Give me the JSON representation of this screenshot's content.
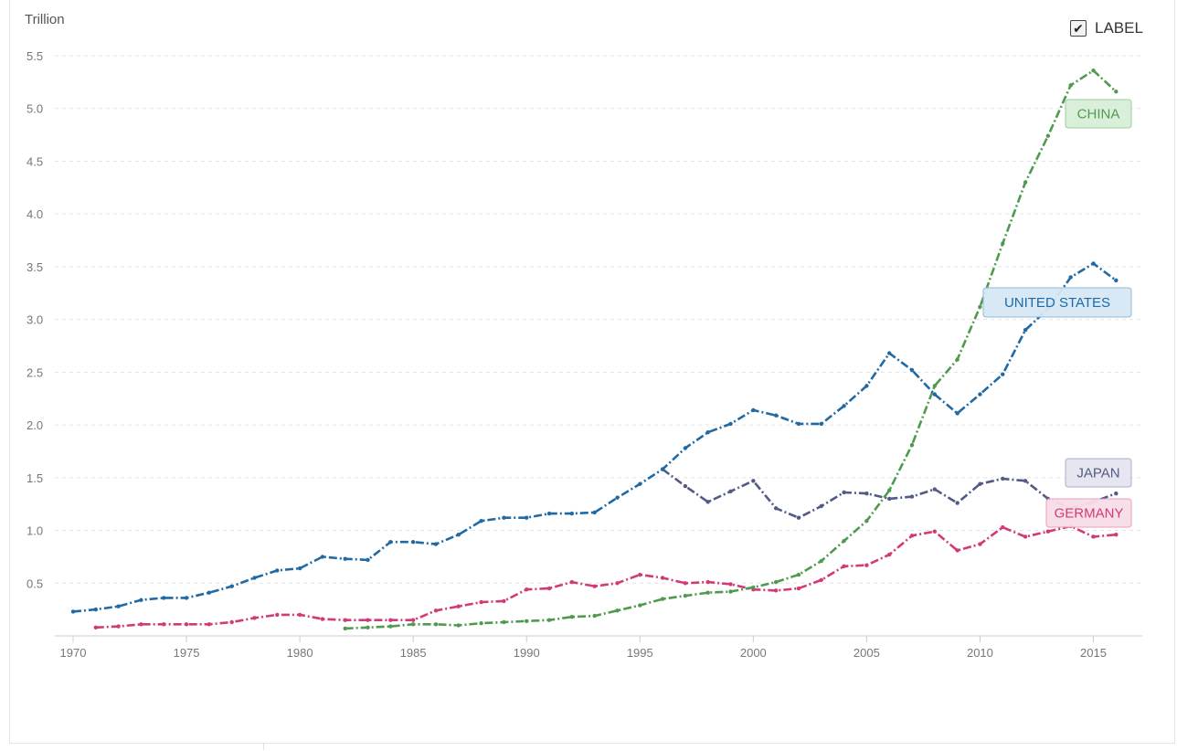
{
  "unit_label": "Trillion",
  "label_toggle": {
    "text": "LABEL",
    "checked": true,
    "check_glyph": "✔"
  },
  "chart_data": {
    "type": "line",
    "ylabel": "Trillion",
    "xlim": [
      1970,
      2017
    ],
    "ylim": [
      0,
      5.5
    ],
    "y_ticks": [
      0.5,
      1.0,
      1.5,
      2.0,
      2.5,
      3.0,
      3.5,
      4.0,
      4.5,
      5.0,
      5.5
    ],
    "y_tick_labels": [
      "0.5",
      "1.0",
      "1.5",
      "2.0",
      "2.5",
      "3.0",
      "3.5",
      "4.0",
      "4.5",
      "5.0",
      "5.5"
    ],
    "x_ticks": [
      1970,
      1975,
      1980,
      1985,
      1990,
      1995,
      2000,
      2005,
      2010,
      2015
    ],
    "x_tick_labels": [
      "1970",
      "1975",
      "1980",
      "1985",
      "1990",
      "1995",
      "2000",
      "2005",
      "2010",
      "2015"
    ],
    "grid": "horizontal dashed",
    "series": [
      {
        "name": "UNITED STATES",
        "color": "#2169a3",
        "label_bg": "#d6e8f5",
        "label_border": "#8ab8da",
        "x": [
          1970,
          1971,
          1972,
          1973,
          1974,
          1975,
          1976,
          1977,
          1978,
          1979,
          1980,
          1981,
          1982,
          1983,
          1984,
          1985,
          1986,
          1987,
          1988,
          1989,
          1990,
          1991,
          1992,
          1993,
          1994,
          1995,
          1996,
          1997,
          1998,
          1999,
          2000,
          2001,
          2002,
          2003,
          2004,
          2005,
          2006,
          2007,
          2008,
          2009,
          2010,
          2011,
          2012,
          2013,
          2014,
          2015,
          2016
        ],
        "y": [
          0.23,
          0.25,
          0.28,
          0.34,
          0.36,
          0.36,
          0.41,
          0.47,
          0.55,
          0.62,
          0.64,
          0.75,
          0.73,
          0.72,
          0.89,
          0.89,
          0.87,
          0.96,
          1.09,
          1.12,
          1.12,
          1.16,
          1.16,
          1.17,
          1.31,
          1.44,
          1.58,
          1.78,
          1.93,
          2.01,
          2.14,
          2.09,
          2.01,
          2.01,
          2.18,
          2.37,
          2.68,
          2.52,
          2.29,
          2.11,
          2.29,
          2.48,
          2.9,
          3.1,
          3.4,
          3.53,
          3.37
        ]
      },
      {
        "name": "CHINA",
        "color": "#4f9a4f",
        "label_bg": "#d9efd9",
        "label_border": "#98cc98",
        "x": [
          1982,
          1983,
          1984,
          1985,
          1986,
          1987,
          1988,
          1989,
          1990,
          1991,
          1992,
          1993,
          1994,
          1995,
          1996,
          1997,
          1998,
          1999,
          2000,
          2001,
          2002,
          2003,
          2004,
          2005,
          2006,
          2007,
          2008,
          2009,
          2010,
          2011,
          2012,
          2013,
          2014,
          2015,
          2016
        ],
        "y": [
          0.07,
          0.08,
          0.09,
          0.11,
          0.11,
          0.1,
          0.12,
          0.13,
          0.14,
          0.15,
          0.18,
          0.19,
          0.24,
          0.29,
          0.35,
          0.38,
          0.41,
          0.42,
          0.46,
          0.51,
          0.58,
          0.71,
          0.9,
          1.09,
          1.38,
          1.81,
          2.37,
          2.62,
          3.12,
          3.72,
          4.3,
          4.74,
          5.22,
          5.36,
          5.16
        ]
      },
      {
        "name": "JAPAN",
        "color": "#525a86",
        "label_bg": "#e5e5f0",
        "label_border": "#a8a8c6",
        "x": [
          1996,
          1997,
          1998,
          1999,
          2000,
          2001,
          2002,
          2003,
          2004,
          2005,
          2006,
          2007,
          2008,
          2009,
          2010,
          2011,
          2012,
          2013,
          2014,
          2015,
          2016
        ],
        "y": [
          1.58,
          1.42,
          1.27,
          1.37,
          1.47,
          1.21,
          1.12,
          1.23,
          1.36,
          1.35,
          1.3,
          1.32,
          1.39,
          1.26,
          1.44,
          1.49,
          1.47,
          1.3,
          1.21,
          1.27,
          1.35
        ]
      },
      {
        "name": "GERMANY",
        "color": "#d13a76",
        "label_bg": "#f8dde8",
        "label_border": "#e59bbb",
        "x": [
          1971,
          1972,
          1973,
          1974,
          1975,
          1976,
          1977,
          1978,
          1979,
          1980,
          1981,
          1982,
          1983,
          1984,
          1985,
          1986,
          1987,
          1988,
          1989,
          1990,
          1991,
          1992,
          1993,
          1994,
          1995,
          1996,
          1997,
          1998,
          1999,
          2000,
          2001,
          2002,
          2003,
          2004,
          2005,
          2006,
          2007,
          2008,
          2009,
          2010,
          2011,
          2012,
          2013,
          2014,
          2015,
          2016
        ],
        "y": [
          0.08,
          0.09,
          0.11,
          0.11,
          0.11,
          0.11,
          0.13,
          0.17,
          0.2,
          0.2,
          0.16,
          0.15,
          0.15,
          0.15,
          0.15,
          0.24,
          0.28,
          0.32,
          0.33,
          0.44,
          0.45,
          0.51,
          0.47,
          0.5,
          0.58,
          0.55,
          0.5,
          0.51,
          0.49,
          0.44,
          0.43,
          0.45,
          0.53,
          0.66,
          0.67,
          0.77,
          0.95,
          0.99,
          0.81,
          0.87,
          1.03,
          0.94,
          0.99,
          1.04,
          0.94,
          0.96
        ]
      }
    ]
  }
}
